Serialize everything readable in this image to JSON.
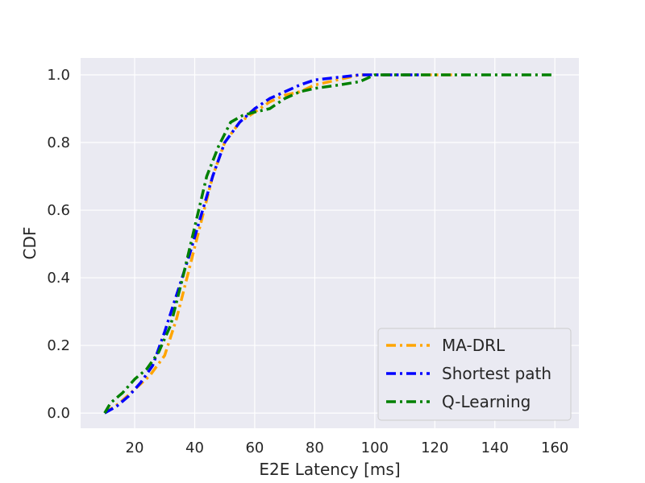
{
  "chart_data": {
    "type": "line",
    "xlabel": "E2E Latency [ms]",
    "ylabel": "CDF",
    "xlim": [
      2,
      168
    ],
    "ylim": [
      -0.045,
      1.05
    ],
    "xticks": [
      20,
      40,
      60,
      80,
      100,
      120,
      140,
      160
    ],
    "yticks": [
      0.0,
      0.2,
      0.4,
      0.6,
      0.8,
      1.0
    ],
    "xtick_labels": [
      "20",
      "40",
      "60",
      "80",
      "100",
      "120",
      "140",
      "160"
    ],
    "ytick_labels": [
      "0.0",
      "0.2",
      "0.4",
      "0.6",
      "0.8",
      "1.0"
    ],
    "grid": true,
    "legend_position": "bottom-right",
    "series": [
      {
        "name": "MA-DRL",
        "color": "#ffa500",
        "points": [
          [
            10,
            0.0
          ],
          [
            15,
            0.03
          ],
          [
            20,
            0.07
          ],
          [
            25,
            0.11
          ],
          [
            30,
            0.17
          ],
          [
            34,
            0.28
          ],
          [
            38,
            0.42
          ],
          [
            42,
            0.56
          ],
          [
            46,
            0.7
          ],
          [
            50,
            0.8
          ],
          [
            55,
            0.86
          ],
          [
            60,
            0.89
          ],
          [
            65,
            0.92
          ],
          [
            70,
            0.94
          ],
          [
            75,
            0.95
          ],
          [
            80,
            0.97
          ],
          [
            85,
            0.98
          ],
          [
            90,
            0.99
          ],
          [
            95,
            1.0
          ],
          [
            127,
            1.0
          ]
        ]
      },
      {
        "name": "Shortest path",
        "color": "#0000ff",
        "points": [
          [
            10,
            0.0
          ],
          [
            14,
            0.02
          ],
          [
            18,
            0.05
          ],
          [
            22,
            0.09
          ],
          [
            26,
            0.14
          ],
          [
            30,
            0.24
          ],
          [
            34,
            0.35
          ],
          [
            38,
            0.46
          ],
          [
            42,
            0.58
          ],
          [
            46,
            0.7
          ],
          [
            50,
            0.8
          ],
          [
            55,
            0.86
          ],
          [
            60,
            0.9
          ],
          [
            65,
            0.93
          ],
          [
            70,
            0.95
          ],
          [
            75,
            0.97
          ],
          [
            80,
            0.985
          ],
          [
            85,
            0.99
          ],
          [
            90,
            0.995
          ],
          [
            95,
            1.0
          ],
          [
            115,
            1.0
          ]
        ]
      },
      {
        "name": "Q-Learning",
        "color": "#008000",
        "points": [
          [
            10,
            0.0
          ],
          [
            12,
            0.03
          ],
          [
            16,
            0.06
          ],
          [
            20,
            0.1
          ],
          [
            24,
            0.13
          ],
          [
            28,
            0.18
          ],
          [
            32,
            0.26
          ],
          [
            36,
            0.4
          ],
          [
            40,
            0.55
          ],
          [
            44,
            0.7
          ],
          [
            48,
            0.79
          ],
          [
            52,
            0.86
          ],
          [
            56,
            0.88
          ],
          [
            60,
            0.89
          ],
          [
            65,
            0.9
          ],
          [
            70,
            0.93
          ],
          [
            75,
            0.95
          ],
          [
            80,
            0.96
          ],
          [
            88,
            0.97
          ],
          [
            95,
            0.98
          ],
          [
            100,
            1.0
          ],
          [
            160,
            1.0
          ]
        ]
      }
    ]
  }
}
